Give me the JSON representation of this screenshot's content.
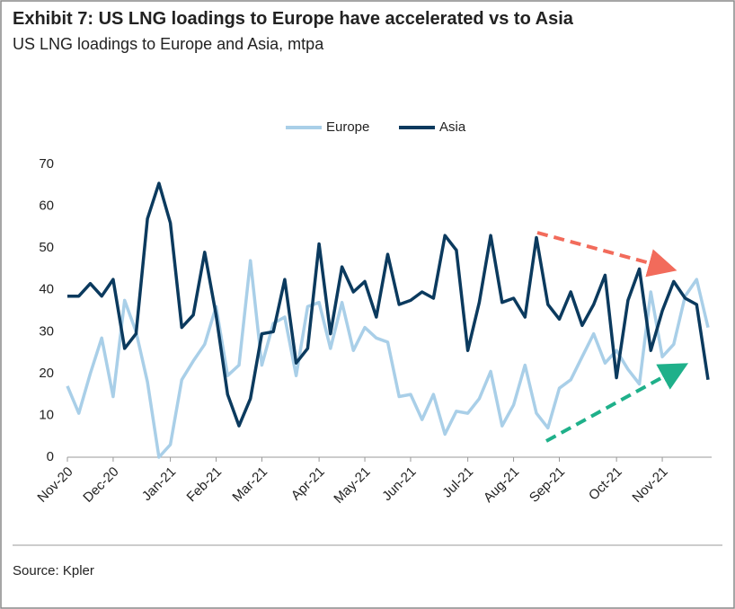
{
  "chart_data": {
    "type": "line",
    "title": "Exhibit 7: US LNG loadings to Europe have accelerated vs to Asia",
    "subtitle": "US LNG loadings to Europe and Asia, mtpa",
    "source": "Source: Kpler",
    "categories": [
      "Nov-20",
      null,
      null,
      null,
      "Dec-20",
      null,
      null,
      null,
      null,
      "Jan-21",
      null,
      null,
      null,
      "Feb-21",
      null,
      null,
      null,
      "Mar-21",
      null,
      null,
      null,
      null,
      "Apr-21",
      null,
      null,
      null,
      "May-21",
      null,
      null,
      null,
      "Jun-21",
      null,
      null,
      null,
      null,
      "Jul-21",
      null,
      null,
      null,
      "Aug-21",
      null,
      null,
      null,
      "Sep-21",
      null,
      null,
      null,
      null,
      "Oct-21",
      null,
      null,
      null,
      "Nov-21",
      null,
      null,
      null,
      null
    ],
    "series": [
      {
        "name": "Europe",
        "color": "#a9cfe8",
        "values": [
          17,
          10.5,
          20,
          28.5,
          14.5,
          37.5,
          30,
          18,
          0,
          3,
          18.5,
          23,
          27,
          36,
          19.5,
          22,
          47,
          22,
          32,
          33.5,
          19.5,
          36,
          37,
          26,
          37,
          25.5,
          31,
          28.5,
          27.5,
          14.5,
          15,
          9,
          15,
          5.5,
          11,
          10.5,
          14,
          20.5,
          7.5,
          12.5,
          22,
          10.5,
          7,
          16.5,
          18.5,
          24,
          29.5,
          22.5,
          25.5,
          21,
          17.5,
          39.5,
          24,
          27,
          38.5,
          42.5,
          31
        ]
      },
      {
        "name": "Asia",
        "color": "#0b3a5e",
        "values": [
          38.5,
          38.5,
          41.5,
          38.5,
          42.5,
          26,
          29.5,
          57,
          65.5,
          56,
          31,
          34,
          49,
          34,
          15,
          7.5,
          14,
          29.5,
          30,
          42.5,
          22.5,
          26,
          51,
          29.5,
          45.5,
          39.5,
          42,
          33.5,
          48.5,
          36.5,
          37.5,
          39.5,
          38,
          53,
          49.5,
          25.5,
          37,
          53,
          37,
          38,
          33.5,
          52.5,
          36.5,
          33,
          39.5,
          31.5,
          36.5,
          43.5,
          19,
          37.5,
          45,
          25.5,
          35,
          42,
          38,
          36.5,
          18.5
        ]
      }
    ],
    "ylim": [
      0,
      70
    ],
    "yticks": [
      0,
      10,
      20,
      30,
      40,
      50,
      60,
      70
    ],
    "grid": false
  }
}
